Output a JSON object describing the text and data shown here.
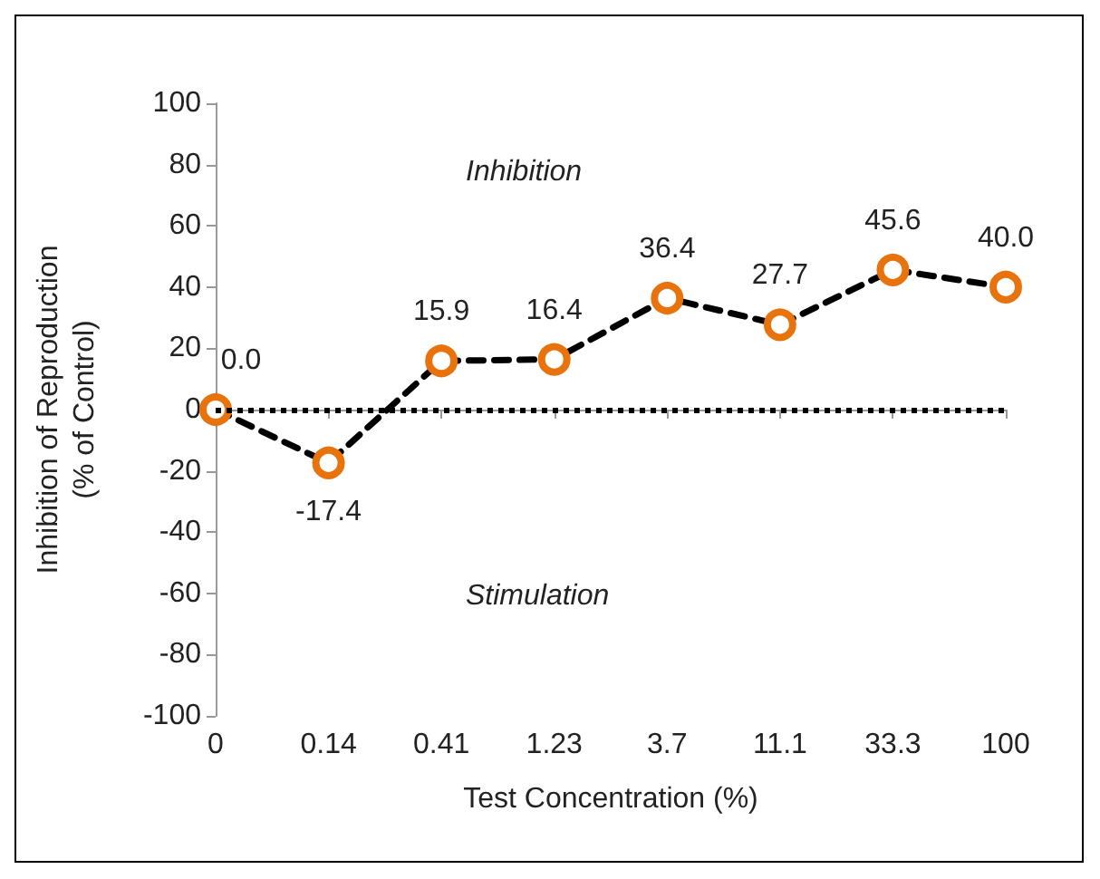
{
  "chart_data": {
    "type": "line",
    "xlabel": "Test Concentration (%)",
    "ylabel": "Inhibition of Reproduction\n(% of Control)",
    "categories": [
      "0",
      "0.14",
      "0.41",
      "1.23",
      "3.7",
      "11.1",
      "33.3",
      "100"
    ],
    "series": [
      {
        "color": "#000000",
        "colors": [
          "#e8720c",
          "#e8720c",
          "#e8720c",
          "#e8720c",
          "#e8720c",
          "#e8720c",
          "#e8720c",
          "#e8720c"
        ],
        "values": [
          0.0,
          -17.4,
          15.9,
          16.4,
          36.4,
          27.7,
          45.6,
          40.0
        ],
        "value_labels": [
          "0.0",
          "-17.4",
          "15.9",
          "16.4",
          "36.4",
          "27.7",
          "45.6",
          "40.0"
        ]
      }
    ],
    "ylim": [
      -100,
      100
    ],
    "yticks": [
      -100,
      -80,
      -60,
      -40,
      -20,
      0,
      20,
      40,
      60,
      80,
      100
    ],
    "ref_lines": [
      {
        "axis": "y",
        "value": 0,
        "color": "#000000",
        "line_style": "dotted"
      }
    ],
    "annotations": [
      "Inhibition",
      "Stimulation"
    ],
    "marker": "circle",
    "line_style": "dashed",
    "grid": false
  }
}
